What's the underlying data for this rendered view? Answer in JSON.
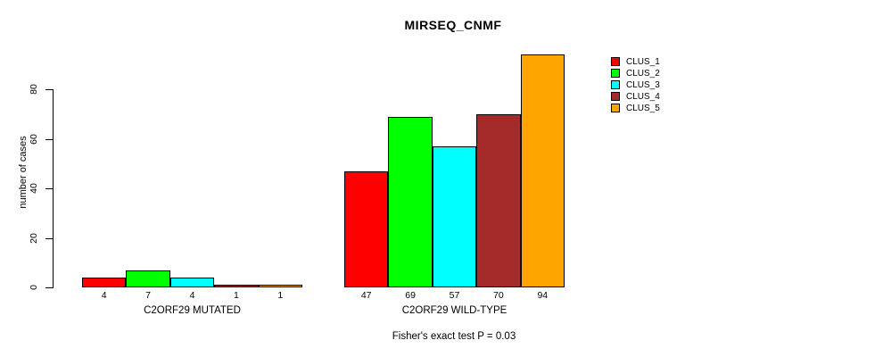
{
  "title": "MIRSEQ_CNMF",
  "y_axis": {
    "label": "number of cases",
    "ticks": [
      0,
      20,
      40,
      60,
      80
    ]
  },
  "footnote": "Fisher's exact test P = 0.03",
  "legend": {
    "entries": [
      {
        "label": "CLUS_1",
        "color": "#ff0000"
      },
      {
        "label": "CLUS_2",
        "color": "#00ff00"
      },
      {
        "label": "CLUS_3",
        "color": "#00ffff"
      },
      {
        "label": "CLUS_4",
        "color": "#a52a2a"
      },
      {
        "label": "CLUS_5",
        "color": "#ffa500"
      }
    ]
  },
  "chart_data": {
    "type": "bar",
    "title": "MIRSEQ_CNMF",
    "ylabel": "number of cases",
    "xlabel": "",
    "yticks": [
      0,
      20,
      40,
      60,
      80
    ],
    "ylim": [
      0,
      94
    ],
    "grid": false,
    "legend_position": "right",
    "series": [
      "CLUS_1",
      "CLUS_2",
      "CLUS_3",
      "CLUS_4",
      "CLUS_5"
    ],
    "series_colors": [
      "#ff0000",
      "#00ff00",
      "#00ffff",
      "#a52a2a",
      "#ffa500"
    ],
    "groups": [
      {
        "label": "C2ORF29 MUTATED",
        "values": [
          4,
          7,
          4,
          1,
          1
        ]
      },
      {
        "label": "C2ORF29 WILD-TYPE",
        "values": [
          47,
          69,
          57,
          70,
          94
        ]
      }
    ],
    "value_labels_shown": true,
    "footnote": "Fisher's exact test P = 0.03"
  }
}
